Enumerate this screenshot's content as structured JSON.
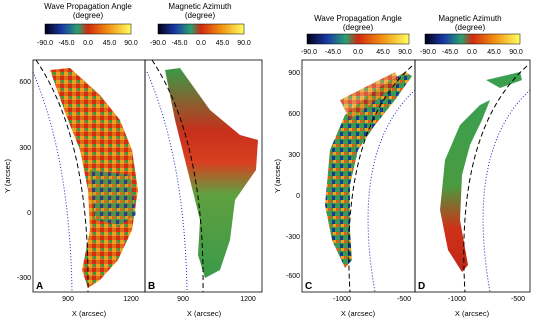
{
  "colorbars": [
    {
      "title": "Wave Propagation Angle",
      "unit": "(degree)",
      "ticks": [
        "-90.0",
        "-45.0",
        "0.0",
        "45.0",
        "90.0"
      ]
    },
    {
      "title": "Magnetic Azimuth",
      "unit": "(degree)",
      "ticks": [
        "-90.0",
        "-45.0",
        "0.0",
        "45.0",
        "90.0"
      ]
    },
    {
      "title": "Wave Propagation Angle",
      "unit": "(degree)",
      "ticks": [
        "-90.0",
        "-45.0",
        "0.0",
        "45.0",
        "90.0"
      ]
    },
    {
      "title": "Magnetic Azimuth",
      "unit": "(degree)",
      "ticks": [
        "-90.0",
        "-45.0",
        "0.0",
        "45.0",
        "90.0"
      ]
    }
  ],
  "panels": [
    {
      "letter": "A",
      "xlabel": "X (arcsec)",
      "xticks": [
        "900",
        "1200"
      ],
      "ylabel": "Y (arcsec)",
      "yticks": [
        "600",
        "300",
        "0",
        "-300"
      ]
    },
    {
      "letter": "B",
      "xlabel": "X (arcsec)",
      "xticks": [
        "900",
        "1200"
      ]
    },
    {
      "letter": "C",
      "xlabel": "X (arcsec)",
      "xticks": [
        "-1000",
        "-500"
      ],
      "ylabel": "Y (arcsec)",
      "yticks": [
        "900",
        "600",
        "300",
        "0",
        "-300",
        "-600"
      ]
    },
    {
      "letter": "D",
      "xlabel": "X (arcsec)",
      "xticks": [
        "-1000",
        "-500"
      ]
    }
  ]
}
